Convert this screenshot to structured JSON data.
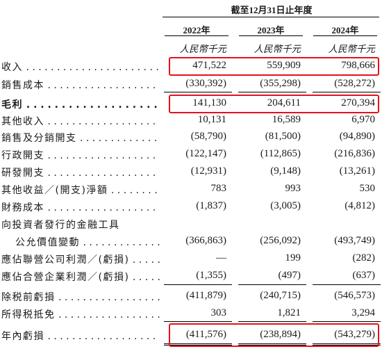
{
  "header": {
    "period_label": "截至12月31日止年度",
    "years": [
      "2022年",
      "2023年",
      "2024年"
    ],
    "units": [
      "人民幣千元",
      "人民幣千元",
      "人民幣千元"
    ]
  },
  "rows": [
    {
      "label": "收入",
      "values": [
        "471,522",
        "559,909",
        "798,666"
      ]
    },
    {
      "label": "銷售成本",
      "values": [
        "(330,392)",
        "(355,298)",
        "(528,272)"
      ]
    },
    {
      "label": "毛利",
      "values": [
        "141,130",
        "204,611",
        "270,394"
      ]
    },
    {
      "label": "其他收入",
      "values": [
        "10,131",
        "16,589",
        "6,970"
      ]
    },
    {
      "label": "銷售及分銷開支",
      "values": [
        "(58,790)",
        "(81,500)",
        "(94,890)"
      ]
    },
    {
      "label": "行政開支",
      "values": [
        "(122,147)",
        "(112,865)",
        "(216,836)"
      ]
    },
    {
      "label": "研發開支",
      "values": [
        "(12,931)",
        "(9,148)",
        "(13,261)"
      ]
    },
    {
      "label": "其他收益／(開支)淨額",
      "values": [
        "783",
        "993",
        "530"
      ]
    },
    {
      "label": "財務成本",
      "values": [
        "(1,837)",
        "(3,005)",
        "(4,812)"
      ]
    },
    {
      "label": "向投資者發行的金融工具",
      "values": [
        "",
        "",
        ""
      ]
    },
    {
      "label": "公允價值變動",
      "values": [
        "(366,863)",
        "(256,092)",
        "(493,749)"
      ]
    },
    {
      "label": "應佔聯營公司利潤／(虧損)",
      "values": [
        "—",
        "199",
        "(282)"
      ]
    },
    {
      "label": "應佔合營企業利潤／(虧損)",
      "values": [
        "(1,355)",
        "(497)",
        "(637)"
      ]
    },
    {
      "label": "除税前虧損",
      "values": [
        "(411,879)",
        "(240,715)",
        "(546,573)"
      ]
    },
    {
      "label": "所得税抵免",
      "values": [
        "303",
        "1,821",
        "3,294"
      ]
    },
    {
      "label": "年內虧損",
      "values": [
        "(411,576)",
        "(238,894)",
        "(543,279)"
      ]
    }
  ],
  "highlight_color": "#e4121b"
}
